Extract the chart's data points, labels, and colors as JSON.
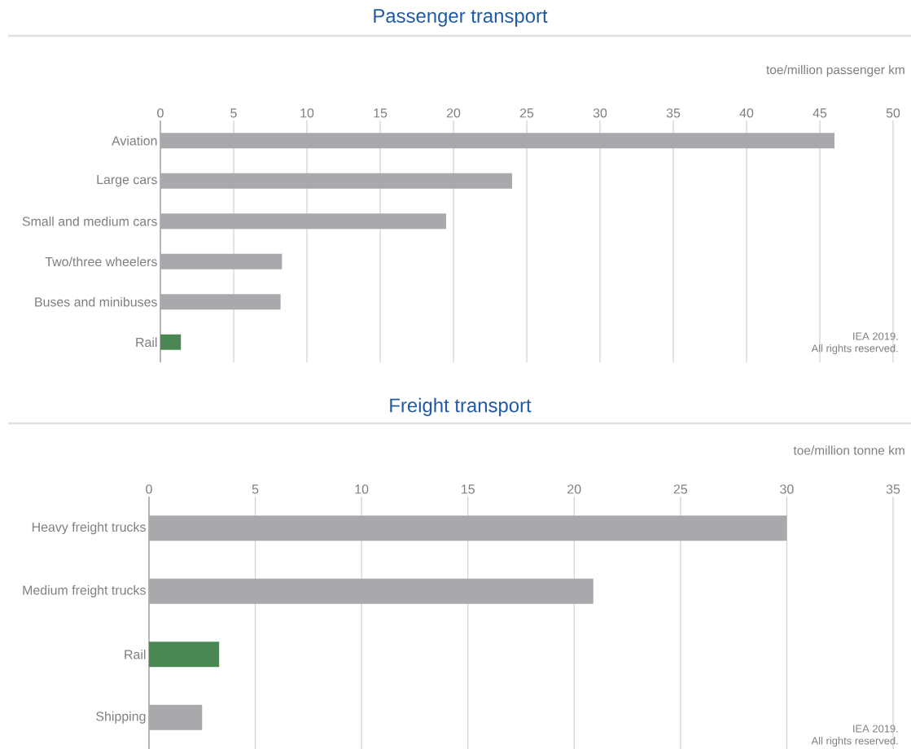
{
  "chart_data": [
    {
      "type": "bar",
      "orientation": "horizontal",
      "title": "Passenger transport",
      "xlabel": "toe/million passenger km",
      "categories": [
        "Aviation",
        "Large cars",
        "Small and medium cars",
        "Two/three wheelers",
        "Buses and minibuses",
        "Rail"
      ],
      "values": [
        46,
        24,
        19.5,
        8.3,
        8.2,
        1.4
      ],
      "colors": [
        "#a7a9ac",
        "#a7a9ac",
        "#a7a9ac",
        "#a7a9ac",
        "#a7a9ac",
        "#4a8752"
      ],
      "xlim": [
        0,
        50
      ],
      "xticks": [
        0,
        5,
        10,
        15,
        20,
        25,
        30,
        35,
        40,
        45,
        50
      ],
      "grid": "x",
      "annotations": [
        "IEA 2019.",
        "All rights reserved."
      ]
    },
    {
      "type": "bar",
      "orientation": "horizontal",
      "title": "Freight transport",
      "xlabel": "toe/million tonne km",
      "categories": [
        "Heavy freight trucks",
        "Medium freight trucks",
        "Rail",
        "Shipping"
      ],
      "values": [
        30,
        20.9,
        3.3,
        2.5
      ],
      "colors": [
        "#a7a9ac",
        "#a7a9ac",
        "#4a8752",
        "#a7a9ac"
      ],
      "xlim": [
        0,
        35
      ],
      "xticks": [
        0,
        5,
        10,
        15,
        20,
        25,
        30,
        35
      ],
      "grid": "x",
      "annotations": [
        "IEA 2019.",
        "All rights reserved."
      ]
    }
  ]
}
